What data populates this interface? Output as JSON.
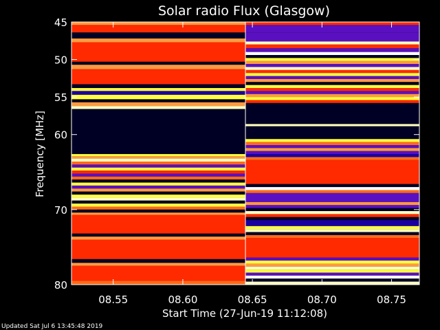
{
  "chart_data": {
    "type": "heatmap",
    "title": "Solar radio Flux (Glasgow)",
    "xlabel": "Start Time (27-Jun-19 11:12:08)",
    "ylabel": "Frequency [MHz]",
    "xlim": [
      8.52,
      8.77
    ],
    "ylim": [
      45,
      80
    ],
    "x_ticks": [
      "08.55",
      "08.60",
      "08.65",
      "08.70",
      "08.75"
    ],
    "x_tick_values": [
      8.55,
      8.6,
      8.65,
      8.7,
      8.75
    ],
    "y_ticks": [
      "45",
      "50",
      "55",
      "60",
      "70",
      "80"
    ],
    "y_tick_values": [
      45,
      50,
      55,
      60,
      70,
      80
    ],
    "segment_boundary_x": 8.645,
    "colors": {
      "background": "#000000",
      "dark_navy": "#000025",
      "red": "#ff2a00",
      "orange": "#ff6a1a",
      "light_orange": "#ff9a40",
      "yellow": "#ffff40",
      "pale_yellow": "#ffffc0",
      "white": "#ffffff",
      "purple": "#5a10c0",
      "blue": "#1a00a0"
    },
    "segments": [
      {
        "x_range": [
          8.52,
          8.645
        ],
        "bands": [
          {
            "f": [
              45.0,
              45.4
            ],
            "c": "light_orange"
          },
          {
            "f": [
              45.4,
              46.4
            ],
            "c": "red"
          },
          {
            "f": [
              46.4,
              47.2
            ],
            "c": "dark_navy"
          },
          {
            "f": [
              47.2,
              47.7
            ],
            "c": "light_orange"
          },
          {
            "f": [
              47.7,
              50.3
            ],
            "c": "red"
          },
          {
            "f": [
              50.3,
              50.7
            ],
            "c": "dark_navy"
          },
          {
            "f": [
              50.7,
              51.3
            ],
            "c": "light_orange"
          },
          {
            "f": [
              51.3,
              53.3
            ],
            "c": "red"
          },
          {
            "f": [
              53.3,
              53.8
            ],
            "c": "dark_navy"
          },
          {
            "f": [
              53.8,
              54.2
            ],
            "c": "yellow"
          },
          {
            "f": [
              54.2,
              54.7
            ],
            "c": "blue"
          },
          {
            "f": [
              54.7,
              55.3
            ],
            "c": "yellow"
          },
          {
            "f": [
              55.3,
              55.7
            ],
            "c": "dark_navy"
          },
          {
            "f": [
              55.7,
              56.2
            ],
            "c": "light_orange"
          },
          {
            "f": [
              56.2,
              56.6
            ],
            "c": "pale_yellow"
          },
          {
            "f": [
              56.6,
              57.0
            ],
            "c": "dark_navy"
          },
          {
            "f": [
              57.0,
              62.6
            ],
            "c": "dark_navy"
          },
          {
            "f": [
              62.6,
              62.9
            ],
            "c": "yellow"
          },
          {
            "f": [
              62.9,
              63.2
            ],
            "c": "light_orange"
          },
          {
            "f": [
              63.2,
              63.6
            ],
            "c": "pale_yellow"
          },
          {
            "f": [
              63.6,
              64.0
            ],
            "c": "orange"
          },
          {
            "f": [
              64.0,
              64.4
            ],
            "c": "purple"
          },
          {
            "f": [
              64.4,
              64.8
            ],
            "c": "yellow"
          },
          {
            "f": [
              64.8,
              65.2
            ],
            "c": "red"
          },
          {
            "f": [
              65.2,
              65.6
            ],
            "c": "purple"
          },
          {
            "f": [
              65.6,
              66.0
            ],
            "c": "orange"
          },
          {
            "f": [
              66.0,
              66.4
            ],
            "c": "dark_navy"
          },
          {
            "f": [
              66.4,
              66.8
            ],
            "c": "yellow"
          },
          {
            "f": [
              66.8,
              67.2
            ],
            "c": "purple"
          },
          {
            "f": [
              67.2,
              67.6
            ],
            "c": "light_orange"
          },
          {
            "f": [
              67.6,
              68.0
            ],
            "c": "dark_navy"
          },
          {
            "f": [
              68.0,
              68.4
            ],
            "c": "yellow"
          },
          {
            "f": [
              68.4,
              68.8
            ],
            "c": "pale_yellow"
          },
          {
            "f": [
              68.8,
              69.2
            ],
            "c": "dark_navy"
          },
          {
            "f": [
              69.2,
              69.6
            ],
            "c": "yellow"
          },
          {
            "f": [
              69.6,
              70.0
            ],
            "c": "orange"
          },
          {
            "f": [
              70.0,
              70.4
            ],
            "c": "dark_navy"
          },
          {
            "f": [
              70.4,
              70.7
            ],
            "c": "light_orange"
          },
          {
            "f": [
              70.7,
              73.2
            ],
            "c": "red"
          },
          {
            "f": [
              73.2,
              73.6
            ],
            "c": "dark_navy"
          },
          {
            "f": [
              73.6,
              74.0
            ],
            "c": "light_orange"
          },
          {
            "f": [
              74.0,
              76.6
            ],
            "c": "red"
          },
          {
            "f": [
              76.6,
              77.1
            ],
            "c": "dark_navy"
          },
          {
            "f": [
              77.1,
              77.5
            ],
            "c": "light_orange"
          },
          {
            "f": [
              77.5,
              79.5
            ],
            "c": "red"
          },
          {
            "f": [
              79.5,
              80.0
            ],
            "c": "orange"
          }
        ]
      },
      {
        "x_range": [
          8.645,
          8.77
        ],
        "bands": [
          {
            "f": [
              45.0,
              45.4
            ],
            "c": "red"
          },
          {
            "f": [
              45.4,
              46.4
            ],
            "c": "purple"
          },
          {
            "f": [
              46.4,
              47.6
            ],
            "c": "purple"
          },
          {
            "f": [
              47.6,
              48.0
            ],
            "c": "pale_yellow"
          },
          {
            "f": [
              48.0,
              48.5
            ],
            "c": "red"
          },
          {
            "f": [
              48.5,
              49.0
            ],
            "c": "purple"
          },
          {
            "f": [
              49.0,
              49.4
            ],
            "c": "white"
          },
          {
            "f": [
              49.4,
              49.8
            ],
            "c": "dark_navy"
          },
          {
            "f": [
              49.8,
              50.2
            ],
            "c": "yellow"
          },
          {
            "f": [
              50.2,
              50.6
            ],
            "c": "light_orange"
          },
          {
            "f": [
              50.6,
              51.0
            ],
            "c": "purple"
          },
          {
            "f": [
              51.0,
              51.4
            ],
            "c": "pale_yellow"
          },
          {
            "f": [
              51.4,
              51.8
            ],
            "c": "red"
          },
          {
            "f": [
              51.8,
              52.2
            ],
            "c": "yellow"
          },
          {
            "f": [
              52.2,
              52.6
            ],
            "c": "purple"
          },
          {
            "f": [
              52.6,
              53.0
            ],
            "c": "light_orange"
          },
          {
            "f": [
              53.0,
              53.4
            ],
            "c": "dark_navy"
          },
          {
            "f": [
              53.4,
              53.8
            ],
            "c": "yellow"
          },
          {
            "f": [
              53.8,
              54.2
            ],
            "c": "red"
          },
          {
            "f": [
              54.2,
              54.6
            ],
            "c": "purple"
          },
          {
            "f": [
              54.6,
              55.0
            ],
            "c": "light_orange"
          },
          {
            "f": [
              55.0,
              55.4
            ],
            "c": "yellow"
          },
          {
            "f": [
              55.4,
              55.8
            ],
            "c": "red"
          },
          {
            "f": [
              55.8,
              56.4
            ],
            "c": "dark_navy"
          },
          {
            "f": [
              56.4,
              58.6
            ],
            "c": "dark_navy"
          },
          {
            "f": [
              58.6,
              58.9
            ],
            "c": "pale_yellow"
          },
          {
            "f": [
              58.9,
              60.6
            ],
            "c": "dark_navy"
          },
          {
            "f": [
              60.6,
              61.0
            ],
            "c": "yellow"
          },
          {
            "f": [
              61.0,
              61.4
            ],
            "c": "orange"
          },
          {
            "f": [
              61.4,
              61.8
            ],
            "c": "purple"
          },
          {
            "f": [
              61.8,
              62.2
            ],
            "c": "light_orange"
          },
          {
            "f": [
              62.2,
              62.6
            ],
            "c": "purple"
          },
          {
            "f": [
              62.6,
              63.0
            ],
            "c": "blue"
          },
          {
            "f": [
              63.0,
              63.4
            ],
            "c": "orange"
          },
          {
            "f": [
              63.4,
              66.6
            ],
            "c": "red"
          },
          {
            "f": [
              66.6,
              67.0
            ],
            "c": "dark_navy"
          },
          {
            "f": [
              67.0,
              67.4
            ],
            "c": "white"
          },
          {
            "f": [
              67.4,
              67.8
            ],
            "c": "orange"
          },
          {
            "f": [
              67.8,
              69.0
            ],
            "c": "purple"
          },
          {
            "f": [
              69.0,
              69.4
            ],
            "c": "light_orange"
          },
          {
            "f": [
              69.4,
              69.8
            ],
            "c": "purple"
          },
          {
            "f": [
              69.8,
              70.2
            ],
            "c": "dark_navy"
          },
          {
            "f": [
              70.2,
              70.6
            ],
            "c": "pale_yellow"
          },
          {
            "f": [
              70.6,
              71.0
            ],
            "c": "red"
          },
          {
            "f": [
              71.0,
              71.4
            ],
            "c": "dark_navy"
          },
          {
            "f": [
              71.4,
              72.2
            ],
            "c": "blue"
          },
          {
            "f": [
              72.2,
              72.6
            ],
            "c": "yellow"
          },
          {
            "f": [
              72.6,
              73.0
            ],
            "c": "pale_yellow"
          },
          {
            "f": [
              73.0,
              73.4
            ],
            "c": "dark_navy"
          },
          {
            "f": [
              73.4,
              73.8
            ],
            "c": "orange"
          },
          {
            "f": [
              73.8,
              76.4
            ],
            "c": "red"
          },
          {
            "f": [
              76.4,
              76.8
            ],
            "c": "purple"
          },
          {
            "f": [
              76.8,
              77.2
            ],
            "c": "yellow"
          },
          {
            "f": [
              77.2,
              77.6
            ],
            "c": "light_orange"
          },
          {
            "f": [
              77.6,
              78.0
            ],
            "c": "pale_yellow"
          },
          {
            "f": [
              78.0,
              78.4
            ],
            "c": "yellow"
          },
          {
            "f": [
              78.4,
              78.8
            ],
            "c": "purple"
          },
          {
            "f": [
              78.8,
              79.2
            ],
            "c": "white"
          },
          {
            "f": [
              79.2,
              79.6
            ],
            "c": "dark_navy"
          },
          {
            "f": [
              79.6,
              80.0
            ],
            "c": "pale_yellow"
          }
        ]
      }
    ]
  },
  "footer": {
    "updated": "Updated Sat Jul  6 13:45:48 2019"
  }
}
